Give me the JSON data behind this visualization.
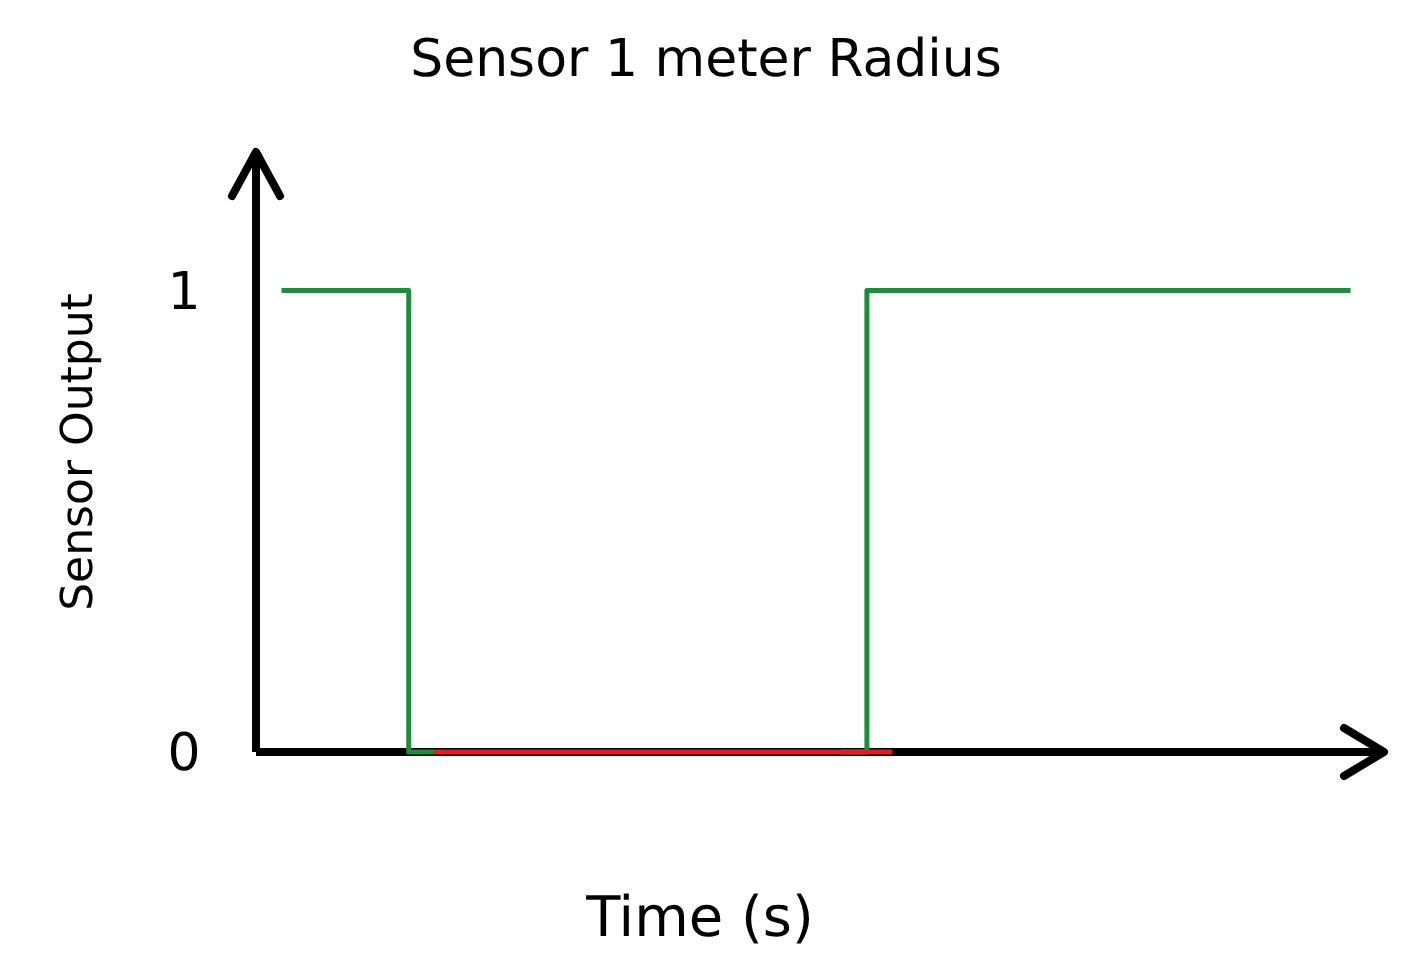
{
  "chart_data": {
    "type": "step",
    "title": "Sensor 1 meter Radius",
    "xlabel": "Time (s)",
    "ylabel": "Sensor Output",
    "categories": [
      null,
      null,
      null,
      null,
      null,
      null,
      null,
      null,
      null,
      null,
      null,
      null,
      null,
      null,
      null,
      null,
      null,
      null,
      null,
      null,
      null,
      null
    ],
    "series": [
      {
        "color": "#1e8c3c",
        "values": [
          1,
          1,
          1,
          0,
          null,
          null,
          null,
          null,
          null,
          null,
          null,
          null,
          null,
          null,
          null,
          null,
          null,
          null,
          null,
          null,
          null,
          null
        ]
      },
      {
        "color": "#1e8c3c",
        "values": [
          null,
          null,
          null,
          null,
          null,
          null,
          null,
          null,
          null,
          null,
          null,
          0,
          1,
          1,
          1,
          1,
          1,
          1,
          1,
          1,
          1,
          1
        ]
      },
      {
        "color": "#e02020",
        "values": [
          null,
          null,
          null,
          0,
          0,
          0,
          0,
          0,
          0,
          0,
          0,
          0,
          0,
          null,
          null,
          null,
          null,
          null,
          null,
          null,
          null,
          null
        ]
      }
    ],
    "ylim": [
      0,
      1.3
    ],
    "yticks": [
      0,
      1
    ],
    "grid": false
  }
}
